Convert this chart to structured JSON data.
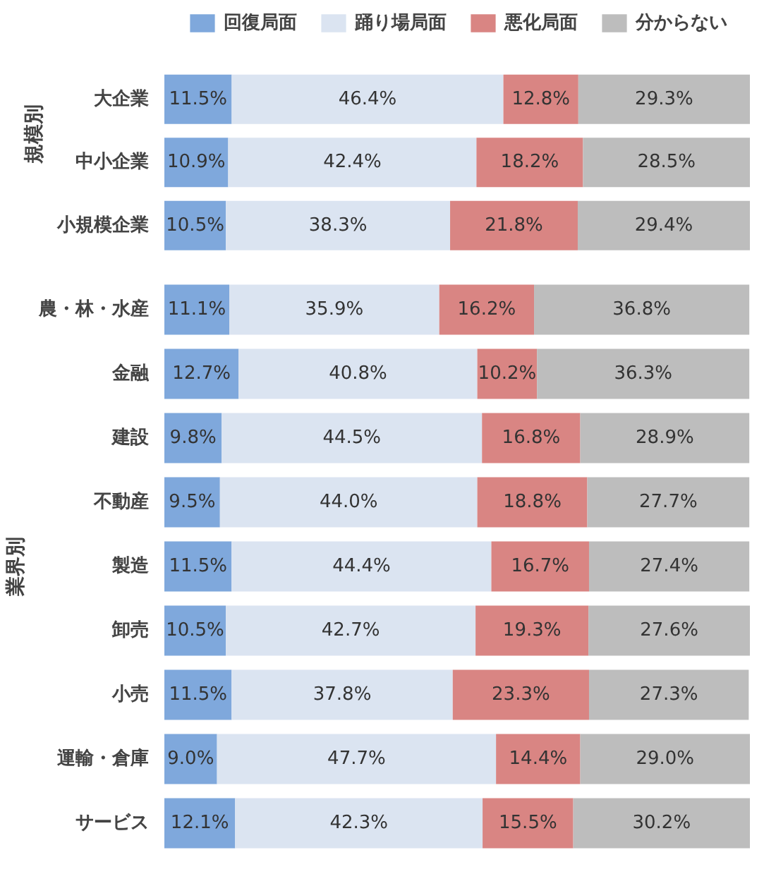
{
  "chart_data": [
    {
      "type": "bar",
      "orientation": "horizontal",
      "stacked": true,
      "ylabel": "規模別",
      "legend": "top",
      "tick_labels": "y",
      "grid": false,
      "categories": [
        "大企業",
        "中小企業",
        "小規模企業"
      ],
      "series": [
        {
          "name": "回復局面",
          "color": "#7fa8dc",
          "values": [
            11.5,
            10.9,
            10.5
          ],
          "value_labels": [
            "11.5%",
            "10.9%",
            "10.5%"
          ]
        },
        {
          "name": "踊り場局面",
          "color": "#dbe4f1",
          "values": [
            46.4,
            42.4,
            38.3
          ],
          "value_labels": [
            "46.4%",
            "42.4%",
            "38.3%"
          ]
        },
        {
          "name": "悪化局面",
          "color": "#d98583",
          "values": [
            12.8,
            18.2,
            21.8
          ],
          "value_labels": [
            "12.8%",
            "18.2%",
            "21.8%"
          ]
        },
        {
          "name": "分からない",
          "color": "#bdbdbd",
          "values": [
            29.3,
            28.5,
            29.4
          ],
          "value_labels": [
            "29.3%",
            "28.5%",
            "29.4%"
          ]
        }
      ]
    },
    {
      "type": "bar",
      "orientation": "horizontal",
      "stacked": true,
      "ylabel": "業界別",
      "tick_labels": "y",
      "grid": false,
      "categories": [
        "農・林・水産",
        "金融",
        "建設",
        "不動産",
        "製造",
        "卸売",
        "小売",
        "運輸・倉庫",
        "サービス"
      ],
      "series": [
        {
          "color": "#7fa8dc",
          "values": [
            11.1,
            12.7,
            9.8,
            9.5,
            11.5,
            10.5,
            11.5,
            9.0,
            12.1
          ],
          "value_labels": [
            "11.1%",
            "12.7%",
            "9.8%",
            "9.5%",
            "11.5%",
            "10.5%",
            "11.5%",
            "9.0%",
            "12.1%"
          ]
        },
        {
          "color": "#dbe4f1",
          "values": [
            35.9,
            40.8,
            44.5,
            44.0,
            44.4,
            42.7,
            37.8,
            47.7,
            42.3
          ],
          "value_labels": [
            "35.9%",
            "40.8%",
            "44.5%",
            "44.0%",
            "44.4%",
            "42.7%",
            "37.8%",
            "47.7%",
            "42.3%"
          ]
        },
        {
          "color": "#d98583",
          "values": [
            16.2,
            10.2,
            16.8,
            18.8,
            16.7,
            19.3,
            23.3,
            14.4,
            15.5
          ],
          "value_labels": [
            "16.2%",
            "10.2%",
            "16.8%",
            "18.8%",
            "16.7%",
            "19.3%",
            "23.3%",
            "14.4%",
            "15.5%"
          ]
        },
        {
          "color": "#bdbdbd",
          "values": [
            36.8,
            36.3,
            28.9,
            27.7,
            27.4,
            27.6,
            27.3,
            29.0,
            30.2
          ],
          "value_labels": [
            "36.8%",
            "36.3%",
            "28.9%",
            "27.7%",
            "27.4%",
            "27.6%",
            "27.3%",
            "29.0%",
            "30.2%"
          ]
        }
      ]
    }
  ]
}
